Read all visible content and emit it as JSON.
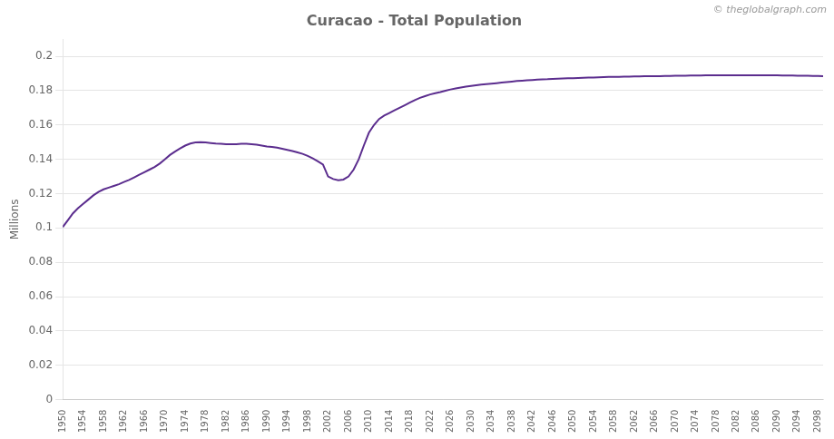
{
  "chart_data": {
    "type": "line",
    "title": "Curacao - Total Population",
    "ylabel": "Millions",
    "annotations": [
      "© theglobalgraph.com"
    ],
    "color": "#5b2d8e",
    "grid": "y",
    "xlim": [
      1950,
      2099
    ],
    "xticks": [
      1950,
      1954,
      1958,
      1962,
      1966,
      1970,
      1974,
      1978,
      1982,
      1986,
      1990,
      1994,
      1998,
      2002,
      2006,
      2010,
      2014,
      2018,
      2022,
      2026,
      2030,
      2034,
      2038,
      2042,
      2046,
      2050,
      2054,
      2058,
      2062,
      2066,
      2070,
      2074,
      2078,
      2082,
      2086,
      2090,
      2094,
      2098
    ],
    "ylim": [
      0,
      0.21
    ],
    "yticks": [
      0,
      0.02,
      0.04,
      0.06,
      0.08,
      0.1,
      0.12,
      0.14,
      0.16,
      0.18,
      0.2
    ],
    "x": [
      1950,
      1951,
      1952,
      1953,
      1954,
      1955,
      1956,
      1957,
      1958,
      1959,
      1960,
      1961,
      1962,
      1963,
      1964,
      1965,
      1966,
      1967,
      1968,
      1969,
      1970,
      1971,
      1972,
      1973,
      1974,
      1975,
      1976,
      1977,
      1978,
      1979,
      1980,
      1981,
      1982,
      1983,
      1984,
      1985,
      1986,
      1987,
      1988,
      1989,
      1990,
      1991,
      1992,
      1993,
      1994,
      1995,
      1996,
      1997,
      1998,
      1999,
      2000,
      2001,
      2002,
      2003,
      2004,
      2005,
      2006,
      2007,
      2008,
      2009,
      2010,
      2011,
      2012,
      2013,
      2014,
      2015,
      2016,
      2017,
      2018,
      2019,
      2020,
      2021,
      2022,
      2023,
      2024,
      2025,
      2026,
      2027,
      2028,
      2029,
      2030,
      2031,
      2032,
      2033,
      2034,
      2035,
      2036,
      2037,
      2038,
      2039,
      2040,
      2041,
      2042,
      2043,
      2044,
      2045,
      2046,
      2047,
      2048,
      2049,
      2050,
      2051,
      2052,
      2053,
      2054,
      2055,
      2056,
      2057,
      2058,
      2059,
      2060,
      2061,
      2062,
      2063,
      2064,
      2065,
      2066,
      2067,
      2068,
      2069,
      2070,
      2071,
      2072,
      2073,
      2074,
      2075,
      2076,
      2077,
      2078,
      2079,
      2080,
      2081,
      2082,
      2083,
      2084,
      2085,
      2086,
      2087,
      2088,
      2089,
      2090,
      2091,
      2092,
      2093,
      2094,
      2095,
      2096,
      2097,
      2098,
      2099
    ],
    "values": [
      0.1005,
      0.1045,
      0.1085,
      0.1115,
      0.114,
      0.1165,
      0.119,
      0.121,
      0.1225,
      0.1235,
      0.1245,
      0.1255,
      0.1268,
      0.128,
      0.1295,
      0.131,
      0.1325,
      0.134,
      0.1355,
      0.1375,
      0.14,
      0.1425,
      0.1445,
      0.1463,
      0.148,
      0.1492,
      0.1498,
      0.15,
      0.1498,
      0.1495,
      0.1492,
      0.149,
      0.1488,
      0.1488,
      0.1488,
      0.149,
      0.149,
      0.1488,
      0.1485,
      0.148,
      0.1475,
      0.1472,
      0.1468,
      0.1462,
      0.1455,
      0.1448,
      0.144,
      0.1432,
      0.142,
      0.1405,
      0.1388,
      0.137,
      0.13,
      0.1285,
      0.1278,
      0.1282,
      0.13,
      0.134,
      0.14,
      0.148,
      0.1555,
      0.16,
      0.1635,
      0.1655,
      0.167,
      0.1685,
      0.17,
      0.1715,
      0.173,
      0.1745,
      0.1758,
      0.1768,
      0.1778,
      0.1785,
      0.1792,
      0.18,
      0.1807,
      0.1813,
      0.1818,
      0.1823,
      0.1827,
      0.1831,
      0.1835,
      0.1838,
      0.1841,
      0.1844,
      0.1847,
      0.185,
      0.1853,
      0.1856,
      0.1858,
      0.186,
      0.1862,
      0.1864,
      0.1866,
      0.1867,
      0.1869,
      0.187,
      0.1871,
      0.1872,
      0.1873,
      0.1874,
      0.1875,
      0.1876,
      0.1877,
      0.1878,
      0.1879,
      0.188,
      0.188,
      0.1881,
      0.1882,
      0.1882,
      0.1883,
      0.1883,
      0.1884,
      0.1884,
      0.1885,
      0.1885,
      0.1886,
      0.1886,
      0.1887,
      0.1887,
      0.1887,
      0.1888,
      0.1888,
      0.1888,
      0.1889,
      0.1889,
      0.1889,
      0.1889,
      0.189,
      0.189,
      0.189,
      0.189,
      0.189,
      0.189,
      0.189,
      0.189,
      0.1889,
      0.1889,
      0.1889,
      0.1888,
      0.1888,
      0.1888,
      0.1887,
      0.1887,
      0.1887,
      0.1886,
      0.1886,
      0.1885
    ]
  }
}
